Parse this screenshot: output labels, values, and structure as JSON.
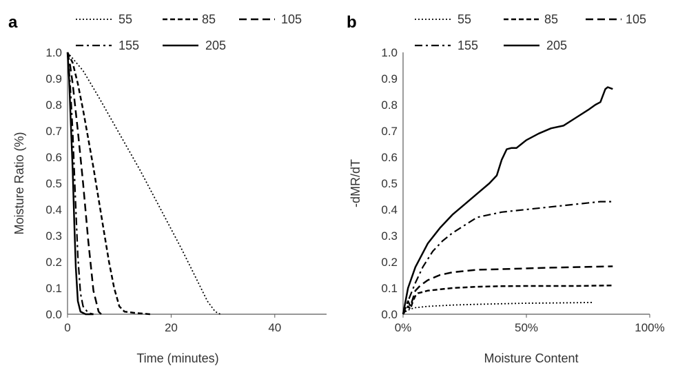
{
  "chart_data": [
    {
      "panel": "a",
      "type": "line",
      "title": "",
      "xlabel": "Time (minutes)",
      "ylabel": "Moisture Ratio (%)",
      "xlim": [
        0,
        50
      ],
      "ylim": [
        0,
        1.0
      ],
      "x_ticks": [
        0,
        20,
        40
      ],
      "x_tick_labels": [
        "0",
        "20",
        "40"
      ],
      "y_ticks": [
        0,
        0.1,
        0.2,
        0.3,
        0.4,
        0.5,
        0.6,
        0.7,
        0.8,
        0.9,
        1.0
      ],
      "y_tick_labels": [
        "0.0",
        "0.1",
        "0.2",
        "0.3",
        "0.4",
        "0.5",
        "0.6",
        "0.7",
        "0.8",
        "0.9",
        "1.0"
      ],
      "grid": false,
      "legend": [
        "55",
        "85",
        "105",
        "155",
        "205"
      ],
      "series": [
        {
          "name": "55",
          "dash": "dotted",
          "x": [
            0,
            3,
            6,
            10,
            14,
            18,
            22,
            25,
            27,
            28.5,
            29.5
          ],
          "y": [
            1.0,
            0.93,
            0.83,
            0.69,
            0.55,
            0.4,
            0.25,
            0.13,
            0.05,
            0.01,
            0.0
          ]
        },
        {
          "name": "85",
          "dash": "dash",
          "x": [
            0,
            1,
            2,
            3,
            4,
            5,
            6,
            7,
            8,
            9,
            10,
            11,
            13,
            16
          ],
          "y": [
            1.0,
            0.96,
            0.88,
            0.78,
            0.67,
            0.56,
            0.44,
            0.32,
            0.2,
            0.1,
            0.03,
            0.01,
            0.005,
            0.0
          ]
        },
        {
          "name": "105",
          "dash": "longdash",
          "x": [
            0,
            0.5,
            1,
            2,
            3,
            4,
            5,
            6,
            6.5
          ],
          "y": [
            1.0,
            0.95,
            0.88,
            0.7,
            0.5,
            0.28,
            0.09,
            0.01,
            0.0
          ]
        },
        {
          "name": "155",
          "dash": "dashdot",
          "x": [
            0,
            0.5,
            1,
            1.5,
            2,
            2.5,
            3,
            4,
            5
          ],
          "y": [
            1.0,
            0.88,
            0.7,
            0.45,
            0.22,
            0.08,
            0.03,
            0.005,
            0.0
          ]
        },
        {
          "name": "205",
          "dash": "solid",
          "x": [
            0,
            0.3,
            0.6,
            1,
            1.3,
            1.6,
            2,
            2.5,
            3.5,
            5
          ],
          "y": [
            1.0,
            0.9,
            0.75,
            0.55,
            0.35,
            0.18,
            0.05,
            0.01,
            0.0,
            0.0
          ]
        }
      ]
    },
    {
      "panel": "b",
      "type": "line",
      "title": "",
      "xlabel": "Moisture Content",
      "ylabel": "-dMR/dT",
      "xlim": [
        0,
        100
      ],
      "ylim": [
        0,
        1.0
      ],
      "x_ticks": [
        0,
        50,
        100
      ],
      "x_tick_labels": [
        "0%",
        "50%",
        "100%"
      ],
      "y_ticks": [
        0,
        0.1,
        0.2,
        0.3,
        0.4,
        0.5,
        0.6,
        0.7,
        0.8,
        0.9,
        1.0
      ],
      "y_tick_labels": [
        "0.0",
        "0.1",
        "0.2",
        "0.3",
        "0.4",
        "0.5",
        "0.6",
        "0.7",
        "0.8",
        "0.9",
        "1.0"
      ],
      "grid": false,
      "legend": [
        "55",
        "85",
        "105",
        "155",
        "205"
      ],
      "series": [
        {
          "name": "55",
          "dash": "dotted",
          "x": [
            0,
            1,
            3,
            5,
            10,
            20,
            30,
            40,
            50,
            60,
            70,
            77
          ],
          "y": [
            0,
            0.01,
            0.02,
            0.025,
            0.03,
            0.035,
            0.038,
            0.04,
            0.042,
            0.043,
            0.044,
            0.045
          ]
        },
        {
          "name": "85",
          "dash": "dash",
          "x": [
            0,
            2,
            3,
            4,
            5,
            6,
            10,
            20,
            30,
            40,
            50,
            60,
            70,
            85
          ],
          "y": [
            0,
            0.03,
            0.02,
            0.05,
            0.07,
            0.08,
            0.09,
            0.1,
            0.105,
            0.107,
            0.108,
            0.108,
            0.108,
            0.11
          ]
        },
        {
          "name": "105",
          "dash": "longdash",
          "x": [
            0,
            2,
            3,
            5,
            7,
            10,
            15,
            20,
            30,
            40,
            50,
            60,
            70,
            85
          ],
          "y": [
            0,
            0.05,
            0.03,
            0.09,
            0.11,
            0.13,
            0.15,
            0.16,
            0.17,
            0.172,
            0.175,
            0.178,
            0.18,
            0.183
          ]
        },
        {
          "name": "155",
          "dash": "dashdot",
          "x": [
            0,
            2,
            5,
            8,
            12,
            16,
            20,
            25,
            30,
            35,
            40,
            50,
            60,
            70,
            80,
            85
          ],
          "y": [
            0,
            0.05,
            0.12,
            0.18,
            0.24,
            0.28,
            0.31,
            0.34,
            0.37,
            0.38,
            0.39,
            0.4,
            0.41,
            0.42,
            0.43,
            0.43
          ]
        },
        {
          "name": "205",
          "dash": "solid",
          "x": [
            0,
            2,
            5,
            10,
            15,
            20,
            25,
            30,
            35,
            38,
            40,
            42,
            44,
            46,
            48,
            50,
            55,
            60,
            65,
            70,
            75,
            78,
            80,
            82,
            83,
            85
          ],
          "y": [
            0,
            0.1,
            0.18,
            0.27,
            0.33,
            0.38,
            0.42,
            0.46,
            0.5,
            0.53,
            0.59,
            0.63,
            0.635,
            0.635,
            0.65,
            0.665,
            0.69,
            0.71,
            0.72,
            0.75,
            0.78,
            0.8,
            0.81,
            0.86,
            0.867,
            0.86
          ]
        }
      ]
    }
  ]
}
